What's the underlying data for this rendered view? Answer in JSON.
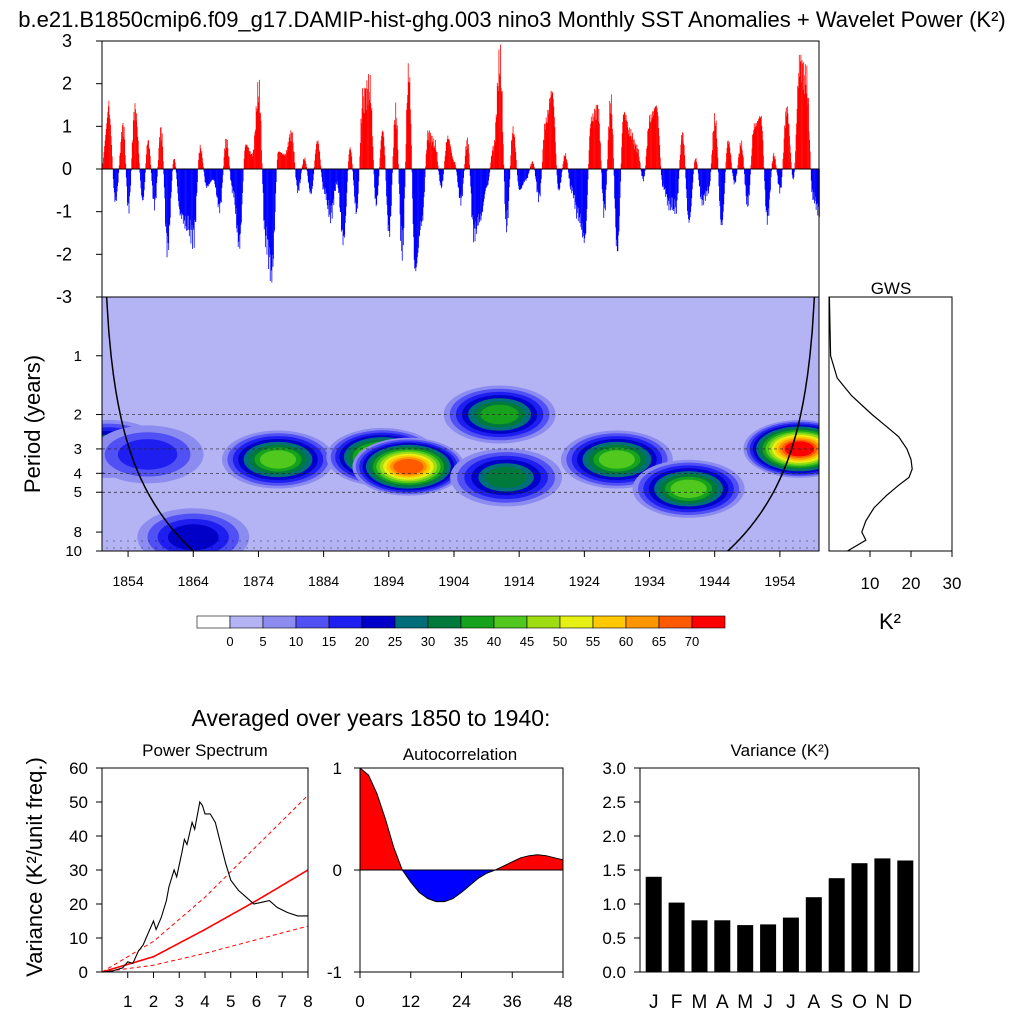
{
  "figure": {
    "title": "b.e21.B1850cmip6.f09_g17.DAMIP-hist-ghg.003 nino3 Monthly SST Anomalies + Wavelet Power (K²)",
    "bottom_title": "Averaged over years 1850 to 1940:"
  },
  "chart_data": [
    {
      "type": "bar",
      "panel": "anomaly-timeseries",
      "ylim": [
        -3,
        3
      ],
      "yticks": [
        "3",
        "2",
        "1",
        "0",
        "-1",
        "-2",
        "-3"
      ],
      "x_range_years": [
        1850,
        1960
      ],
      "positive_color": "#ff0000",
      "negative_color": "#0000ff",
      "peaks": [
        {
          "year": 1851.0,
          "value": 1.6
        },
        {
          "year": 1852.0,
          "value": -0.9
        },
        {
          "year": 1853.2,
          "value": 1.2
        },
        {
          "year": 1854.0,
          "value": -1.1
        },
        {
          "year": 1855.0,
          "value": 1.7
        },
        {
          "year": 1856.2,
          "value": -0.9
        },
        {
          "year": 1857.0,
          "value": 0.8
        },
        {
          "year": 1858.0,
          "value": -1.0
        },
        {
          "year": 1859.0,
          "value": 1.1
        },
        {
          "year": 1860.0,
          "value": -2.2
        },
        {
          "year": 1861.0,
          "value": 0.3
        },
        {
          "year": 1862.0,
          "value": -1.3
        },
        {
          "year": 1863.0,
          "value": -1.6
        },
        {
          "year": 1864.0,
          "value": -1.9
        },
        {
          "year": 1865.0,
          "value": 0.6
        },
        {
          "year": 1866.0,
          "value": -0.5
        },
        {
          "year": 1867.0,
          "value": -0.3
        },
        {
          "year": 1868.0,
          "value": -1.1
        },
        {
          "year": 1869.0,
          "value": 0.8
        },
        {
          "year": 1870.0,
          "value": -0.6
        },
        {
          "year": 1871.0,
          "value": -2.1
        },
        {
          "year": 1872.0,
          "value": 0.7
        },
        {
          "year": 1873.0,
          "value": 0.4
        },
        {
          "year": 1874.0,
          "value": 2.2
        },
        {
          "year": 1875.0,
          "value": -1.9
        },
        {
          "year": 1876.0,
          "value": -2.9
        },
        {
          "year": 1877.0,
          "value": 0.5
        },
        {
          "year": 1878.0,
          "value": 0.4
        },
        {
          "year": 1879.0,
          "value": 1.0
        },
        {
          "year": 1880.0,
          "value": -0.6
        },
        {
          "year": 1881.0,
          "value": 0.3
        },
        {
          "year": 1882.0,
          "value": -0.7
        },
        {
          "year": 1883.0,
          "value": 0.8
        },
        {
          "year": 1884.0,
          "value": -0.6
        },
        {
          "year": 1885.0,
          "value": -1.3
        },
        {
          "year": 1886.0,
          "value": -0.4
        },
        {
          "year": 1887.0,
          "value": -2.0
        },
        {
          "year": 1888.0,
          "value": 0.6
        },
        {
          "year": 1889.0,
          "value": -1.2
        },
        {
          "year": 1890.0,
          "value": 2.0
        },
        {
          "year": 1891.0,
          "value": 2.3
        },
        {
          "year": 1892.0,
          "value": -1.0
        },
        {
          "year": 1893.0,
          "value": 1.1
        },
        {
          "year": 1894.0,
          "value": -1.8
        },
        {
          "year": 1895.0,
          "value": 1.6
        },
        {
          "year": 1896.0,
          "value": -2.3
        },
        {
          "year": 1897.0,
          "value": 2.7
        },
        {
          "year": 1898.0,
          "value": -2.9
        },
        {
          "year": 1899.0,
          "value": -1.5
        },
        {
          "year": 1900.0,
          "value": 1.0
        },
        {
          "year": 1901.0,
          "value": 0.7
        },
        {
          "year": 1902.0,
          "value": -0.5
        },
        {
          "year": 1903.0,
          "value": 0.9
        },
        {
          "year": 1904.0,
          "value": 0.2
        },
        {
          "year": 1905.0,
          "value": -0.9
        },
        {
          "year": 1906.0,
          "value": 0.8
        },
        {
          "year": 1907.0,
          "value": -1.8
        },
        {
          "year": 1908.0,
          "value": -1.4
        },
        {
          "year": 1909.0,
          "value": -0.5
        },
        {
          "year": 1910.0,
          "value": 0.6
        },
        {
          "year": 1911.0,
          "value": 3.0
        },
        {
          "year": 1912.0,
          "value": -1.6
        },
        {
          "year": 1913.0,
          "value": 1.1
        },
        {
          "year": 1914.0,
          "value": -0.6
        },
        {
          "year": 1915.0,
          "value": -0.3
        },
        {
          "year": 1916.0,
          "value": 0.2
        },
        {
          "year": 1917.0,
          "value": -0.8
        },
        {
          "year": 1918.0,
          "value": 1.3
        },
        {
          "year": 1919.0,
          "value": 2.2
        },
        {
          "year": 1920.0,
          "value": -0.6
        },
        {
          "year": 1921.0,
          "value": 0.4
        },
        {
          "year": 1922.0,
          "value": -0.6
        },
        {
          "year": 1923.0,
          "value": -1.3
        },
        {
          "year": 1924.0,
          "value": -2.0
        },
        {
          "year": 1925.0,
          "value": 1.4
        },
        {
          "year": 1926.0,
          "value": 1.7
        },
        {
          "year": 1927.0,
          "value": -1.2
        },
        {
          "year": 1928.0,
          "value": 1.9
        },
        {
          "year": 1929.0,
          "value": -2.3
        },
        {
          "year": 1930.0,
          "value": 1.6
        },
        {
          "year": 1931.0,
          "value": 1.0
        },
        {
          "year": 1932.0,
          "value": 0.6
        },
        {
          "year": 1933.0,
          "value": -0.3
        },
        {
          "year": 1934.0,
          "value": 1.4
        },
        {
          "year": 1935.0,
          "value": 1.8
        },
        {
          "year": 1936.0,
          "value": -0.5
        },
        {
          "year": 1937.0,
          "value": -1.0
        },
        {
          "year": 1938.0,
          "value": -1.1
        },
        {
          "year": 1939.0,
          "value": 1.0
        },
        {
          "year": 1940.0,
          "value": -1.5
        },
        {
          "year": 1941.0,
          "value": 0.3
        },
        {
          "year": 1942.0,
          "value": -0.9
        },
        {
          "year": 1943.0,
          "value": -0.6
        },
        {
          "year": 1944.0,
          "value": 1.4
        },
        {
          "year": 1945.0,
          "value": -1.6
        },
        {
          "year": 1946.0,
          "value": 0.8
        },
        {
          "year": 1947.0,
          "value": -0.4
        },
        {
          "year": 1948.0,
          "value": 0.7
        },
        {
          "year": 1949.0,
          "value": -1.0
        },
        {
          "year": 1950.0,
          "value": 1.2
        },
        {
          "year": 1951.0,
          "value": 1.5
        },
        {
          "year": 1952.0,
          "value": -1.4
        },
        {
          "year": 1953.0,
          "value": 0.4
        },
        {
          "year": 1954.0,
          "value": -0.6
        },
        {
          "year": 1955.0,
          "value": 1.7
        },
        {
          "year": 1956.0,
          "value": -0.3
        },
        {
          "year": 1957.0,
          "value": 3.0
        },
        {
          "year": 1958.0,
          "value": 2.5
        },
        {
          "year": 1959.0,
          "value": -0.8
        },
        {
          "year": 1960.0,
          "value": -1.2
        }
      ]
    },
    {
      "type": "heatmap",
      "panel": "wavelet-power",
      "ylabel": "Period (years)",
      "yticks": [
        "1",
        "2",
        "3",
        "4",
        "5",
        "8",
        "10"
      ],
      "xticks": [
        "1854",
        "1864",
        "1874",
        "1884",
        "1894",
        "1904",
        "1914",
        "1924",
        "1934",
        "1944",
        "1954"
      ],
      "x_range_years": [
        1850,
        1960
      ],
      "y_range_period": [
        0.5,
        10
      ],
      "dashed_periods": [
        2,
        3,
        4,
        5
      ],
      "colorbar_labels": [
        "0",
        "5",
        "10",
        "15",
        "20",
        "25",
        "30",
        "35",
        "40",
        "45",
        "50",
        "55",
        "60",
        "65",
        "70"
      ],
      "colorbar_colors": [
        "#ffffff",
        "#b4b4f5",
        "#8c8cf0",
        "#5050f5",
        "#1e1ef0",
        "#0000c8",
        "#006e7a",
        "#007a3c",
        "#16a21c",
        "#50c81e",
        "#a0dc14",
        "#e6f014",
        "#ffc800",
        "#ff9600",
        "#ff5a00",
        "#ff0000"
      ],
      "power_features": [
        {
          "year": 1851,
          "period": 3.0,
          "power": 32
        },
        {
          "year": 1857,
          "period": 3.2,
          "power": 18
        },
        {
          "year": 1864,
          "period": 8.5,
          "power": 22
        },
        {
          "year": 1877,
          "period": 3.4,
          "power": 42
        },
        {
          "year": 1893,
          "period": 3.3,
          "power": 52
        },
        {
          "year": 1897,
          "period": 3.7,
          "power": 68
        },
        {
          "year": 1911,
          "period": 2.0,
          "power": 38
        },
        {
          "year": 1912,
          "period": 4.2,
          "power": 30
        },
        {
          "year": 1929,
          "period": 3.4,
          "power": 40
        },
        {
          "year": 1940,
          "period": 4.8,
          "power": 40
        },
        {
          "year": 1957,
          "period": 3.0,
          "power": 70
        }
      ]
    },
    {
      "type": "line",
      "panel": "global-wavelet-spectrum",
      "title": "GWS",
      "xlabel": "K²",
      "xticks": [
        "10",
        "20",
        "30"
      ],
      "xlim": [
        0,
        30
      ],
      "points": [
        {
          "period": 0.5,
          "power": 0.1
        },
        {
          "period": 1.0,
          "power": 0.4
        },
        {
          "period": 1.3,
          "power": 2.0
        },
        {
          "period": 1.6,
          "power": 5.5
        },
        {
          "period": 2.0,
          "power": 10.5
        },
        {
          "period": 2.3,
          "power": 14.0
        },
        {
          "period": 2.6,
          "power": 17.0
        },
        {
          "period": 3.0,
          "power": 19.0
        },
        {
          "period": 3.4,
          "power": 20.0
        },
        {
          "period": 3.8,
          "power": 20.3
        },
        {
          "period": 4.2,
          "power": 19.5
        },
        {
          "period": 4.6,
          "power": 17.0
        },
        {
          "period": 5.2,
          "power": 14.0
        },
        {
          "period": 6.0,
          "power": 11.0
        },
        {
          "period": 7.0,
          "power": 9.0
        },
        {
          "period": 8.0,
          "power": 8.0
        },
        {
          "period": 8.8,
          "power": 9.0
        },
        {
          "period": 10.0,
          "power": 4.5
        }
      ]
    },
    {
      "type": "line",
      "panel": "power-spectrum",
      "title": "Power Spectrum",
      "ylabel": "Variance (K²/unit freq.)",
      "xticks": [
        "1",
        "2",
        "3",
        "4",
        "5",
        "6",
        "7",
        "8"
      ],
      "yticks": [
        "0",
        "10",
        "20",
        "30",
        "40",
        "50",
        "60"
      ],
      "xlim": [
        0,
        8
      ],
      "ylim": [
        0,
        60
      ],
      "spectrum": [
        {
          "x": 0.0,
          "y": 0.0
        },
        {
          "x": 0.4,
          "y": 0.3
        },
        {
          "x": 0.8,
          "y": 1.2
        },
        {
          "x": 1.0,
          "y": 3.0
        },
        {
          "x": 1.2,
          "y": 2.5
        },
        {
          "x": 1.4,
          "y": 6.0
        },
        {
          "x": 1.6,
          "y": 8.0
        },
        {
          "x": 1.8,
          "y": 11.5
        },
        {
          "x": 2.0,
          "y": 15.0
        },
        {
          "x": 2.1,
          "y": 12.5
        },
        {
          "x": 2.3,
          "y": 16.0
        },
        {
          "x": 2.5,
          "y": 21.0
        },
        {
          "x": 2.6,
          "y": 25.0
        },
        {
          "x": 2.8,
          "y": 30.0
        },
        {
          "x": 2.9,
          "y": 28.0
        },
        {
          "x": 3.1,
          "y": 35.0
        },
        {
          "x": 3.2,
          "y": 39.0
        },
        {
          "x": 3.3,
          "y": 37.5
        },
        {
          "x": 3.5,
          "y": 44.0
        },
        {
          "x": 3.6,
          "y": 42.0
        },
        {
          "x": 3.8,
          "y": 50.0
        },
        {
          "x": 3.9,
          "y": 49.0
        },
        {
          "x": 4.0,
          "y": 46.5
        },
        {
          "x": 4.2,
          "y": 46.5
        },
        {
          "x": 4.4,
          "y": 44.0
        },
        {
          "x": 4.6,
          "y": 38.0
        },
        {
          "x": 4.8,
          "y": 32.0
        },
        {
          "x": 5.0,
          "y": 27.0
        },
        {
          "x": 5.3,
          "y": 24.0
        },
        {
          "x": 5.6,
          "y": 22.0
        },
        {
          "x": 5.9,
          "y": 20.0
        },
        {
          "x": 6.2,
          "y": 20.5
        },
        {
          "x": 6.5,
          "y": 21.0
        },
        {
          "x": 6.8,
          "y": 19.0
        },
        {
          "x": 7.2,
          "y": 17.5
        },
        {
          "x": 7.6,
          "y": 16.5
        },
        {
          "x": 8.0,
          "y": 16.5
        }
      ],
      "red_noise": [
        {
          "x": 0,
          "y": 0
        },
        {
          "x": 2,
          "y": 4.5
        },
        {
          "x": 4,
          "y": 12.5
        },
        {
          "x": 6,
          "y": 21
        },
        {
          "x": 8,
          "y": 30
        }
      ],
      "confidence_upper": [
        {
          "x": 0,
          "y": 0
        },
        {
          "x": 2,
          "y": 9
        },
        {
          "x": 4,
          "y": 22
        },
        {
          "x": 6,
          "y": 37
        },
        {
          "x": 8,
          "y": 52
        }
      ],
      "confidence_lower": [
        {
          "x": 0,
          "y": 0
        },
        {
          "x": 2,
          "y": 2
        },
        {
          "x": 4,
          "y": 5.5
        },
        {
          "x": 6,
          "y": 9.5
        },
        {
          "x": 8,
          "y": 13.5
        }
      ]
    },
    {
      "type": "area",
      "panel": "autocorrelation",
      "title": "Autocorrelation",
      "xticks": [
        "0",
        "12",
        "24",
        "36",
        "48"
      ],
      "yticks": [
        "1",
        "0",
        "-1"
      ],
      "xlim": [
        0,
        48
      ],
      "ylim": [
        -1,
        1
      ],
      "points": [
        {
          "lag": 0,
          "r": 1.0
        },
        {
          "lag": 2,
          "r": 0.93
        },
        {
          "lag": 4,
          "r": 0.75
        },
        {
          "lag": 6,
          "r": 0.5
        },
        {
          "lag": 8,
          "r": 0.22
        },
        {
          "lag": 10,
          "r": 0.0
        },
        {
          "lag": 12,
          "r": -0.12
        },
        {
          "lag": 14,
          "r": -0.22
        },
        {
          "lag": 16,
          "r": -0.28
        },
        {
          "lag": 18,
          "r": -0.31
        },
        {
          "lag": 20,
          "r": -0.31
        },
        {
          "lag": 22,
          "r": -0.28
        },
        {
          "lag": 24,
          "r": -0.22
        },
        {
          "lag": 26,
          "r": -0.15
        },
        {
          "lag": 28,
          "r": -0.08
        },
        {
          "lag": 30,
          "r": -0.03
        },
        {
          "lag": 32,
          "r": 0.0
        },
        {
          "lag": 34,
          "r": 0.04
        },
        {
          "lag": 36,
          "r": 0.08
        },
        {
          "lag": 38,
          "r": 0.12
        },
        {
          "lag": 40,
          "r": 0.14
        },
        {
          "lag": 42,
          "r": 0.15
        },
        {
          "lag": 44,
          "r": 0.14
        },
        {
          "lag": 46,
          "r": 0.12
        },
        {
          "lag": 48,
          "r": 0.1
        }
      ]
    },
    {
      "type": "bar",
      "panel": "monthly-variance",
      "title": "Variance (K²)",
      "categories": [
        "J",
        "F",
        "M",
        "A",
        "M",
        "J",
        "J",
        "A",
        "S",
        "O",
        "N",
        "D"
      ],
      "values": [
        1.4,
        1.02,
        0.76,
        0.76,
        0.69,
        0.7,
        0.8,
        1.1,
        1.38,
        1.6,
        1.67,
        1.64
      ],
      "yticks": [
        "0.0",
        "0.5",
        "1.0",
        "1.5",
        "2.0",
        "2.5",
        "3.0"
      ],
      "ylim": [
        0,
        3
      ]
    }
  ]
}
